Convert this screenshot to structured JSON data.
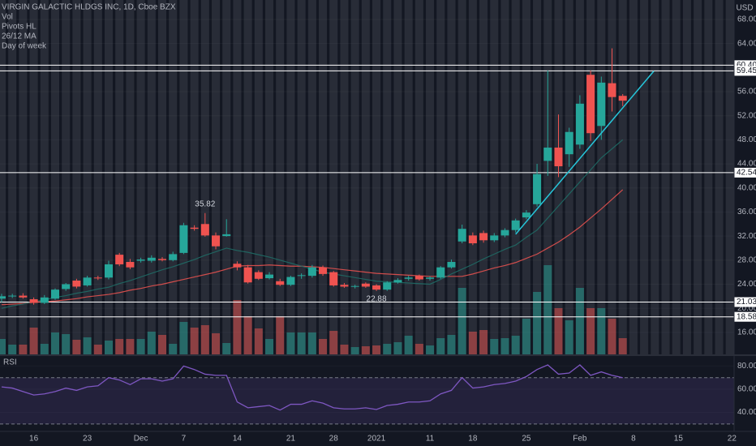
{
  "chart_data": [
    {
      "type": "candlestick",
      "title": "VIRGIN GALACTIC HLDGS INC, 1D, Cboe BZX",
      "indicators": [
        "Vol",
        "Pivots HL",
        "26/12 MA",
        "Day of week"
      ],
      "currency": "USD",
      "categories": [
        null,
        null,
        null,
        null,
        null,
        null,
        null,
        null,
        null,
        null,
        null,
        null,
        null,
        null,
        null,
        null,
        null,
        null,
        null,
        null,
        null,
        null,
        null,
        null,
        null,
        null,
        null,
        null,
        null,
        null,
        null,
        null,
        null,
        null,
        null,
        null,
        null,
        null,
        null,
        null,
        null,
        null,
        null,
        null,
        null,
        null,
        null,
        null,
        null,
        null,
        null,
        null,
        null,
        null,
        null,
        null,
        null,
        null,
        null
      ],
      "open": [
        21.6,
        22.0,
        22.1,
        21.5,
        20.9,
        21.6,
        23.2,
        24.6,
        23.8,
        25.1,
        25.1,
        28.9,
        27.7,
        27.9,
        27.9,
        28.2,
        28.0,
        29.2,
        33.4,
        34.0,
        32.1,
        32.0,
        27.4,
        26.8,
        26.0,
        25.0,
        24.5,
        23.9,
        25.4,
        25.4,
        26.8,
        26.0,
        23.9,
        23.6,
        24.1,
        23.8,
        23.1,
        24.3,
        24.9,
        25.4,
        24.9,
        25.1,
        26.8,
        31.1,
        32.1,
        32.5,
        31.3,
        32.1,
        33.0,
        35.1,
        37.3,
        44.5,
        46.7,
        45.6,
        47.2,
        58.8,
        50.3,
        57.4,
        55.3
      ],
      "high": [
        22.4,
        22.4,
        22.5,
        21.8,
        22.2,
        23.3,
        24.2,
        24.9,
        25.4,
        25.4,
        27.9,
        29.2,
        28.2,
        28.4,
        28.8,
        28.5,
        29.4,
        34.2,
        33.8,
        35.82,
        32.6,
        34.8,
        27.8,
        27.2,
        26.3,
        26.0,
        24.9,
        25.4,
        25.8,
        27.2,
        27.1,
        26.2,
        24.2,
        23.9,
        24.3,
        24.0,
        24.5,
        25.0,
        25.4,
        25.6,
        25.3,
        27.0,
        28.1,
        33.9,
        32.6,
        32.9,
        32.5,
        33.3,
        34.9,
        36.3,
        44.0,
        59.5,
        52.2,
        50.0,
        55.4,
        59.5,
        58.5,
        63.2,
        55.6
      ],
      "low": [
        21.0,
        21.7,
        21.6,
        20.6,
        20.7,
        21.4,
        22.9,
        23.3,
        23.6,
        24.7,
        24.8,
        27.0,
        26.5,
        27.6,
        27.6,
        27.8,
        27.8,
        29.0,
        32.9,
        31.9,
        29.8,
        31.9,
        26.3,
        24.1,
        24.7,
        24.8,
        23.7,
        23.7,
        24.9,
        25.1,
        25.4,
        23.6,
        23.4,
        23.3,
        23.4,
        22.88,
        22.9,
        24.1,
        24.6,
        24.6,
        24.6,
        24.9,
        26.6,
        30.8,
        30.5,
        30.9,
        31.0,
        31.8,
        32.6,
        34.8,
        36.9,
        42.0,
        41.8,
        43.5,
        46.5,
        47.8,
        48.0,
        52.7,
        53.6
      ],
      "close": [
        22.0,
        22.1,
        21.8,
        20.9,
        21.8,
        23.1,
        24.0,
        23.6,
        25.1,
        25.0,
        27.3,
        27.3,
        26.8,
        28.1,
        28.4,
        28.0,
        29.0,
        33.8,
        33.2,
        32.1,
        30.3,
        32.3,
        26.8,
        24.3,
        24.9,
        25.6,
        23.9,
        25.2,
        25.5,
        26.8,
        25.7,
        23.8,
        23.6,
        23.7,
        23.6,
        23.1,
        24.3,
        24.7,
        25.1,
        24.8,
        25.1,
        26.8,
        27.7,
        33.2,
        30.8,
        31.3,
        32.1,
        33.0,
        34.6,
        35.9,
        42.3,
        46.7,
        43.6,
        49.3,
        54.0,
        49.1,
        57.5,
        55.1,
        54.5
      ],
      "volume": [
        19,
        12,
        12,
        33,
        13,
        27,
        25,
        18,
        21,
        12,
        17,
        19,
        19,
        19,
        28,
        24,
        13,
        40,
        33,
        36,
        26,
        14,
        67,
        47,
        32,
        19,
        47,
        27,
        27,
        27,
        19,
        29,
        12,
        9,
        10,
        11,
        13,
        15,
        23,
        13,
        11,
        20,
        24,
        82,
        28,
        30,
        19,
        20,
        23,
        44,
        77,
        110,
        57,
        42,
        82,
        57,
        57,
        44,
        20
      ],
      "up_color": "#26a69a",
      "down_color": "#ef5350",
      "ma_lines": [
        {
          "color": "#ef5350",
          "values": [
            20.6,
            20.7,
            20.8,
            21.0,
            21.1,
            21.2,
            21.4,
            21.6,
            21.9,
            22.1,
            22.3,
            22.6,
            23.0,
            23.3,
            23.7,
            24.0,
            24.4,
            24.8,
            25.2,
            25.6,
            26.0,
            26.5,
            27.0,
            27.1,
            27.1,
            27.2,
            27.1,
            27.0,
            27.0,
            26.9,
            26.8,
            26.6,
            26.4,
            26.2,
            26.0,
            25.8,
            25.7,
            25.6,
            25.5,
            25.4,
            25.3,
            25.3,
            25.3,
            25.3,
            25.7,
            26.2,
            26.7,
            27.1,
            27.6,
            28.3,
            29.0,
            30.0,
            31.0,
            32.2,
            33.5,
            35.0,
            36.5,
            38.1,
            39.7
          ]
        },
        {
          "color": "#1f6f67",
          "values": [
            20.0,
            20.4,
            20.7,
            21.1,
            21.4,
            21.8,
            22.1,
            22.5,
            22.8,
            23.2,
            23.5,
            24.1,
            24.6,
            25.2,
            25.8,
            26.4,
            26.9,
            27.5,
            28.1,
            28.8,
            29.4,
            30.0,
            29.6,
            29.3,
            28.9,
            28.5,
            28.0,
            27.5,
            27.0,
            26.5,
            26.0,
            25.7,
            25.4,
            25.1,
            24.8,
            24.5,
            24.4,
            24.3,
            24.2,
            24.1,
            24.0,
            24.8,
            25.7,
            26.5,
            27.3,
            28.2,
            29.0,
            29.8,
            30.5,
            31.8,
            33.0,
            35.0,
            37.0,
            39.0,
            41.0,
            43.0,
            45.0,
            46.5,
            48.0
          ]
        }
      ],
      "trendline": {
        "color": "#26c6da",
        "x": [
          48,
          60.9
        ],
        "y": [
          32.3,
          59.4
        ]
      },
      "pivot_levels": [
        {
          "value": 60.4,
          "label": "60.40"
        },
        {
          "value": 59.45,
          "label": "59.45"
        },
        {
          "value": 42.54,
          "label": "42.54"
        },
        {
          "value": 21.03,
          "label": "21.03"
        },
        {
          "value": 18.58,
          "label": "18.58"
        }
      ],
      "annotations": [
        "chart_data.0.high.19",
        "chart_data.0.low.35"
      ],
      "xlim": [
        -0.15,
        68.4
      ],
      "ylim": [
        12.34,
        71.23
      ],
      "yticks": [
        {
          "value": 16,
          "label": "16.00"
        },
        {
          "value": 20,
          "label": "20.00"
        },
        {
          "value": 24,
          "label": "24.00"
        },
        {
          "value": 28,
          "label": "28.00"
        },
        {
          "value": 32,
          "label": "32.00"
        },
        {
          "value": 36,
          "label": "36.00"
        },
        {
          "value": 40,
          "label": "40.00"
        },
        {
          "value": 44,
          "label": "44.00"
        },
        {
          "value": 48,
          "label": "48.00"
        },
        {
          "value": 52,
          "label": "52.00"
        },
        {
          "value": 56,
          "label": "56.00"
        },
        {
          "value": 64,
          "label": "64.00"
        },
        {
          "value": 68,
          "label": "68.00"
        }
      ],
      "xticks": [
        {
          "value": 3,
          "label": "16"
        },
        {
          "value": 8,
          "label": "23"
        },
        {
          "value": 13,
          "label": "Dec"
        },
        {
          "value": 17,
          "label": "7"
        },
        {
          "value": 22,
          "label": "14"
        },
        {
          "value": 27,
          "label": "21"
        },
        {
          "value": 31,
          "label": "28"
        },
        {
          "value": 35,
          "label": "2021"
        },
        {
          "value": 40,
          "label": "11"
        },
        {
          "value": 44,
          "label": "18"
        },
        {
          "value": 49,
          "label": "25"
        },
        {
          "value": 54,
          "label": "Feb"
        },
        {
          "value": 59,
          "label": "8"
        },
        {
          "value": 63.2,
          "label": "15"
        },
        {
          "value": 68.2,
          "label": "22"
        }
      ],
      "grid": true
    },
    {
      "type": "line",
      "title": "RSI",
      "color": "#7e57c2",
      "values": [
        62,
        61,
        58,
        55,
        56,
        58,
        61,
        59,
        62,
        63,
        70,
        68,
        64,
        69,
        69,
        67,
        69,
        80,
        77,
        73,
        72,
        72,
        49,
        44,
        45,
        46,
        42,
        47,
        47,
        50,
        48,
        44,
        43,
        43,
        44,
        42.5,
        46,
        47,
        49,
        49,
        50,
        56,
        59,
        70,
        61,
        62,
        64,
        65,
        67,
        71,
        77,
        81,
        73,
        74,
        81,
        72,
        75,
        72,
        70
      ],
      "bands": [
        30,
        70
      ],
      "ylim": [
        25,
        88
      ],
      "yticks": [
        {
          "value": 40,
          "label": "40.00"
        },
        {
          "value": 60,
          "label": "60.00"
        },
        {
          "value": 80,
          "label": "80.00"
        }
      ]
    }
  ]
}
